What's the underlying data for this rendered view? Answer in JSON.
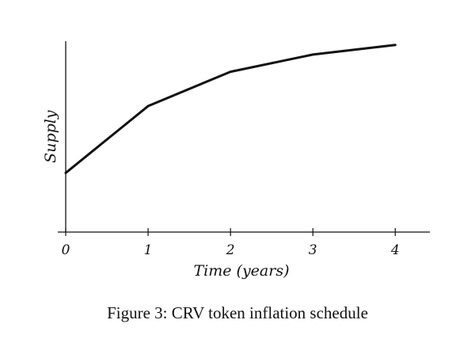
{
  "chart_data": {
    "type": "line",
    "x": [
      0,
      1,
      2,
      3,
      4
    ],
    "series": [
      {
        "values": [
          0.31,
          0.66,
          0.84,
          0.93,
          0.98
        ]
      }
    ],
    "xticks": [
      "0",
      "1",
      "2",
      "3",
      "4"
    ],
    "xlabel": "Time (years)",
    "ylabel": "Supply",
    "xlim": [
      0,
      4.42
    ],
    "ylim": [
      0,
      1
    ],
    "grid": false,
    "line_color": "#111111",
    "caption": "Figure 3: CRV token inflation schedule"
  }
}
